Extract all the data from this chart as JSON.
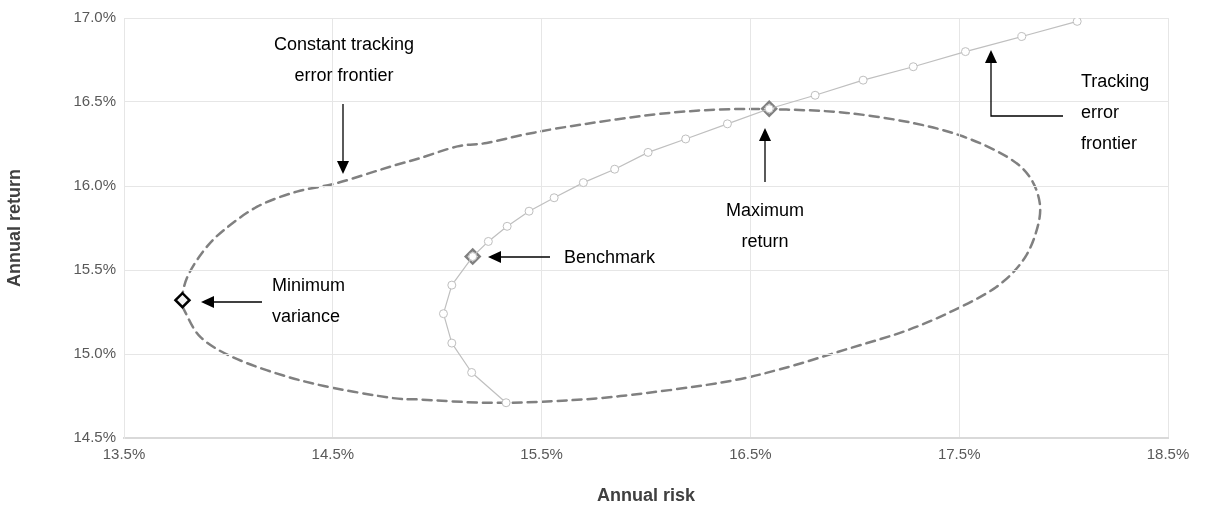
{
  "chart_data": {
    "type": "scatter",
    "xlabel": "Annual risk",
    "ylabel": "Annual return",
    "xlim": [
      13.5,
      18.5
    ],
    "ylim": [
      14.5,
      17.0
    ],
    "xticks": [
      {
        "value": 13.5,
        "label": "13.5%"
      },
      {
        "value": 14.5,
        "label": "14.5%"
      },
      {
        "value": 15.5,
        "label": "15.5%"
      },
      {
        "value": 16.5,
        "label": "16.5%"
      },
      {
        "value": 17.5,
        "label": "17.5%"
      },
      {
        "value": 18.5,
        "label": "18.5%"
      }
    ],
    "yticks": [
      {
        "value": 14.5,
        "label": "14.5%"
      },
      {
        "value": 15.0,
        "label": "15.0%"
      },
      {
        "value": 15.5,
        "label": "15.5%"
      },
      {
        "value": 16.0,
        "label": "16.0%"
      },
      {
        "value": 16.5,
        "label": "16.5%"
      },
      {
        "value": 17.0,
        "label": "17.0%"
      }
    ],
    "grid": true,
    "legend": false,
    "series": [
      {
        "type": "line",
        "color": "#bfbfbf",
        "line_style": "solid",
        "marker": "circle",
        "x": [
          15.33,
          15.165,
          15.07,
          15.03,
          15.07,
          15.17,
          15.245,
          15.335,
          15.44,
          15.56,
          15.7,
          15.85,
          16.01,
          16.19,
          16.39,
          16.59,
          16.81,
          17.04,
          17.28,
          17.53,
          17.8,
          18.065
        ],
        "values": [
          14.71,
          14.89,
          15.065,
          15.24,
          15.41,
          15.58,
          15.67,
          15.76,
          15.85,
          15.93,
          16.02,
          16.1,
          16.2,
          16.28,
          16.37,
          16.46,
          16.54,
          16.63,
          16.71,
          16.8,
          16.89,
          16.98
        ]
      },
      {
        "type": "scatter",
        "color": "#808080",
        "marker": "diamond",
        "x": [
          15.17,
          16.59
        ],
        "values": [
          15.58,
          16.46
        ]
      },
      {
        "type": "scatter",
        "color": "#000000",
        "marker": "diamond",
        "x": [
          13.78
        ],
        "values": [
          15.32
        ]
      }
    ],
    "annotations": [
      "Constant tracking error frontier",
      "Tracking error frontier",
      "Maximum return",
      "Benchmark",
      "Minimum variance"
    ]
  }
}
